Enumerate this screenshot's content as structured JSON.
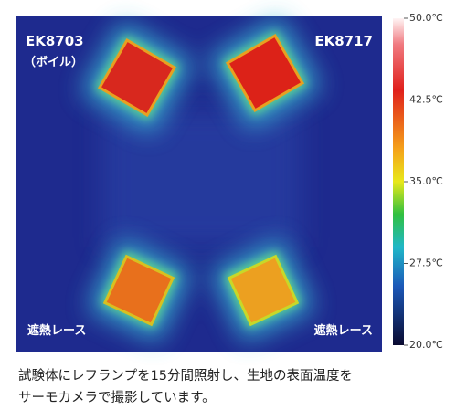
{
  "image": {
    "labels": [
      "EK8703",
      "（ボイル）",
      "EK8717",
      "遮熱レース",
      "遮熱レース"
    ]
  },
  "colorbar": {
    "range": [
      20,
      50
    ],
    "ticks": [
      {
        "value": 50,
        "label": "50.0℃"
      },
      {
        "value": 42.5,
        "label": "42.5℃"
      },
      {
        "value": 35,
        "label": "35.0℃"
      },
      {
        "value": 27.5,
        "label": "27.5℃"
      },
      {
        "value": 20,
        "label": "20.0℃"
      }
    ]
  },
  "caption": {
    "lines": [
      "試験体にレフランプを15分間照射し、生地の表面温度を",
      "サーモカメラで撮影しています。"
    ]
  }
}
